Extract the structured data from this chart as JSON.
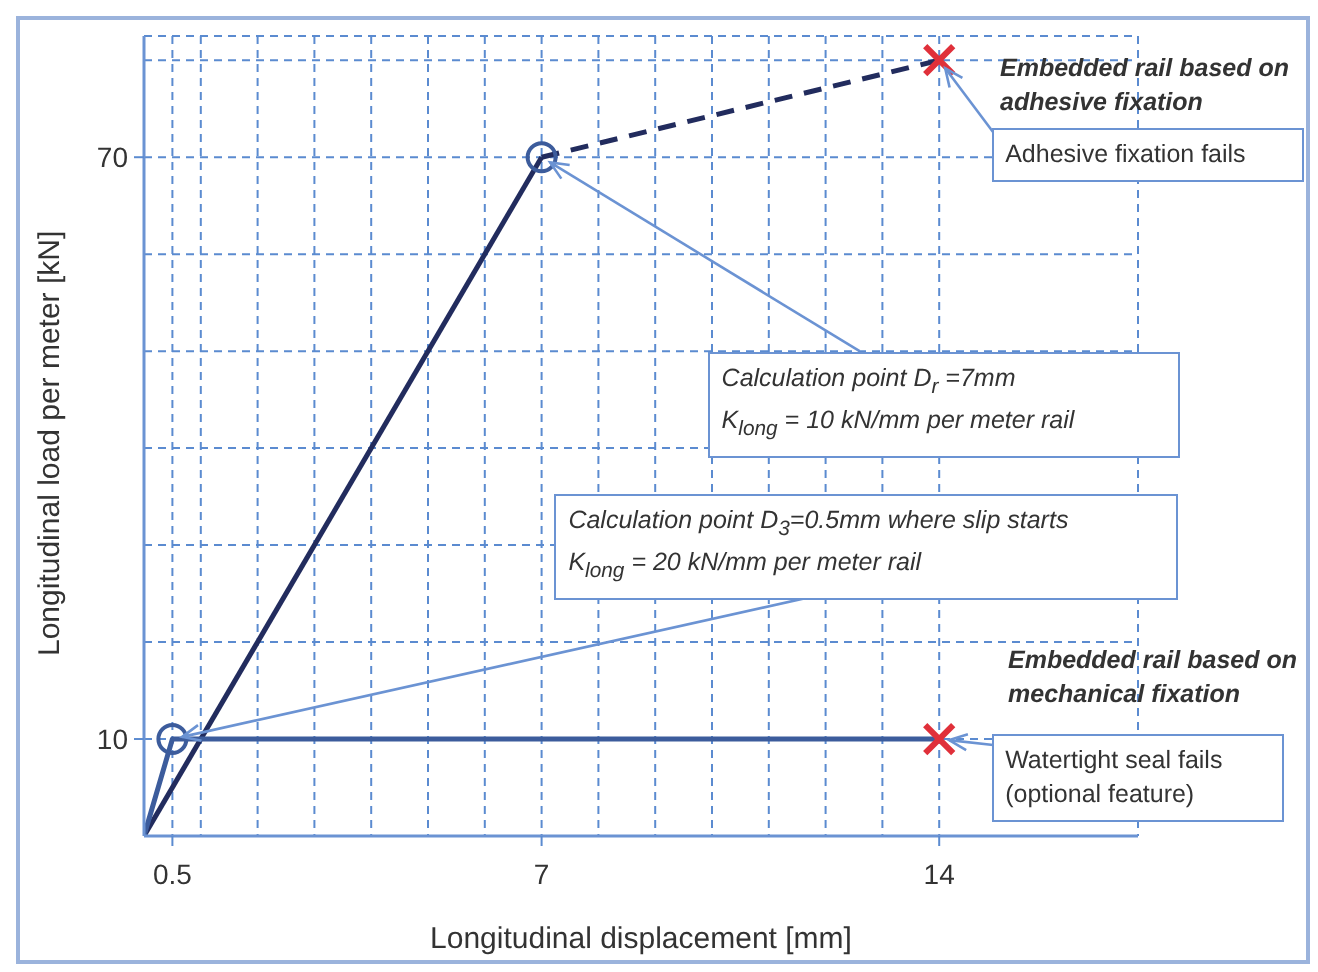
{
  "chart_data": {
    "type": "line",
    "xlabel": "Longitudinal displacement [mm]",
    "ylabel": "Longitudinal load per meter [kN]",
    "xlim": [
      0,
      17.5
    ],
    "ylim": [
      0,
      82.5
    ],
    "xticks": [
      0.5,
      {
        "value": 1,
        "label": null
      },
      {
        "value": 2,
        "label": null
      },
      {
        "value": 3,
        "label": null
      },
      {
        "value": 4,
        "label": null
      },
      {
        "value": 5,
        "label": null
      },
      {
        "value": 6,
        "label": null
      },
      7,
      {
        "value": 8,
        "label": null
      },
      {
        "value": 9,
        "label": null
      },
      {
        "value": 10,
        "label": null
      },
      {
        "value": 11,
        "label": null
      },
      {
        "value": 12,
        "label": null
      },
      {
        "value": 13,
        "label": null
      },
      14
    ],
    "yticks": [
      10,
      {
        "value": 20,
        "label": null
      },
      {
        "value": 30,
        "label": null
      },
      {
        "value": 40,
        "label": null
      },
      {
        "value": 50,
        "label": null
      },
      {
        "value": 60,
        "label": null
      },
      70,
      {
        "value": 80,
        "label": null
      }
    ],
    "grid": true,
    "series": [
      {
        "x": [
          0,
          7
        ],
        "values": [
          0,
          70
        ],
        "color": "#222c5e",
        "line_style": "solid",
        "marker": "none"
      },
      {
        "x": [
          7,
          14
        ],
        "values": [
          70,
          80
        ],
        "color": "#222c5e",
        "line_style": "dashed",
        "marker": "none"
      },
      {
        "x": [
          0,
          0.5,
          14
        ],
        "values": [
          0,
          10,
          10
        ],
        "color": "#3c5c9c",
        "line_style": "solid",
        "marker": "none"
      },
      {
        "type": "scatter",
        "x": [
          0.5,
          7
        ],
        "values": [
          10,
          70
        ],
        "color": "#3c5c9c",
        "marker": "circle"
      },
      {
        "type": "scatter",
        "x": [
          14,
          14
        ],
        "values": [
          80,
          10
        ],
        "color": "#e0303a",
        "marker": "cross"
      }
    ],
    "annotations": [
      "Embedded rail based on adhesive fixation",
      {
        "text": "Adhesive fixation fails",
        "x": 14,
        "y": 80
      },
      {
        "text": "Calculation point D$_{r}$ =7mm",
        "x": 7,
        "y": 70
      },
      "K$_{long}$ = 10 kN/mm per meter rail",
      "Calculation point D$_{3}$=0.5mm where slip starts",
      {
        "text": "K$_{long}$ = 20 kN/mm per meter rail",
        "x": 0.5,
        "y": 10
      },
      "Embedded rail based on mechanical fixation",
      {
        "text": "Watertight seal fails",
        "x": 14,
        "y": 10
      },
      "(optional feature)"
    ]
  }
}
